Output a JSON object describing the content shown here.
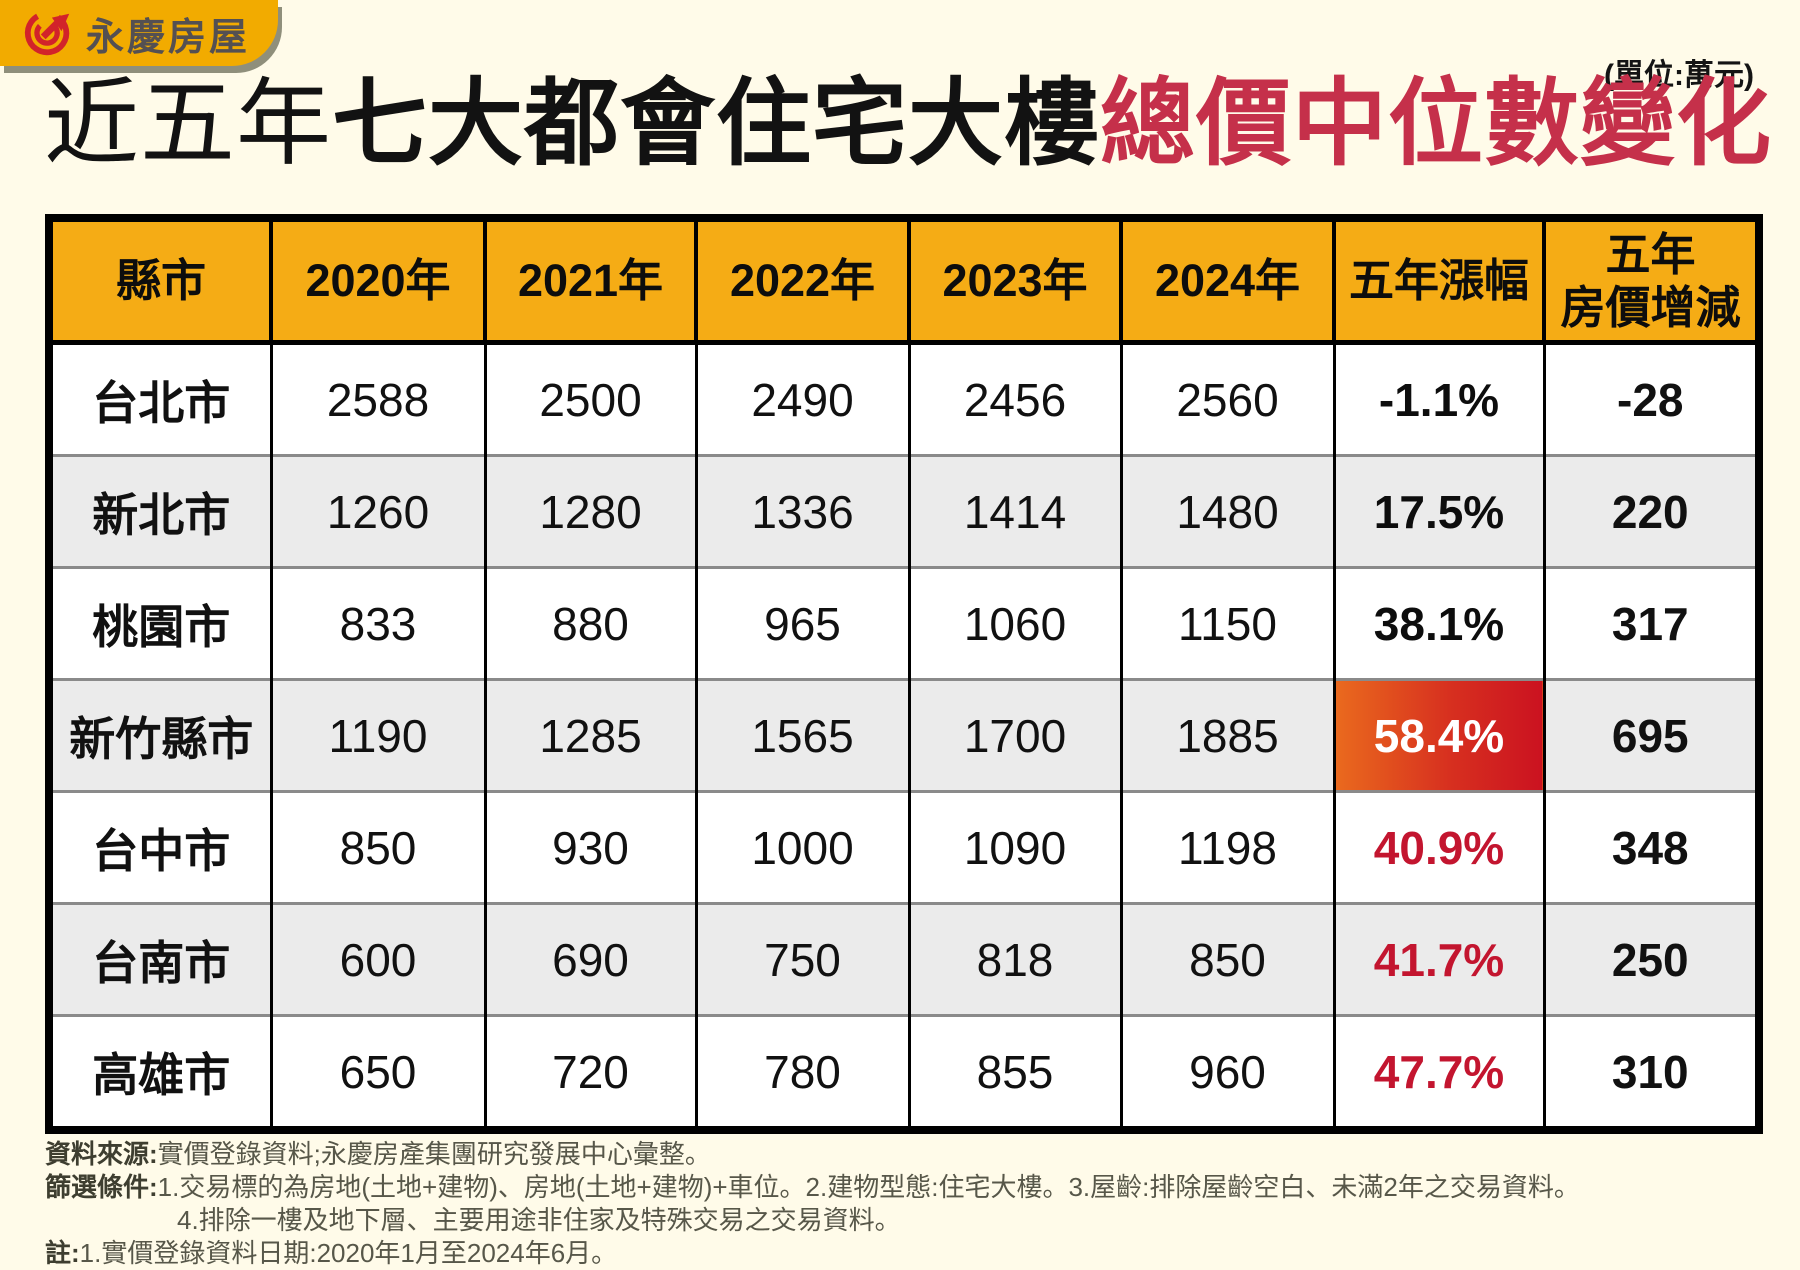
{
  "brand": {
    "name": "永慶房屋",
    "logo_icon": "yungching-swirl-arrow-icon",
    "badge_color": "#F2AB00",
    "logo_red": "#D2232A"
  },
  "unit_label": "(單位:萬元)",
  "title": {
    "prefix": "近五年",
    "middle": "七大都會住宅大樓",
    "highlight": "總價中位數變化",
    "highlight_color": "#C5304A"
  },
  "table": {
    "columns": [
      "縣市",
      "2020年",
      "2021年",
      "2022年",
      "2023年",
      "2024年",
      "五年漲幅",
      "五年\n房價增減"
    ],
    "rows": [
      {
        "city": "台北市",
        "values": [
          "2588",
          "2500",
          "2490",
          "2456",
          "2560"
        ],
        "change_pct": "-1.1%",
        "change_amt": "-28",
        "pct_style": "black",
        "zebra": "white"
      },
      {
        "city": "新北市",
        "values": [
          "1260",
          "1280",
          "1336",
          "1414",
          "1480"
        ],
        "change_pct": "17.5%",
        "change_amt": "220",
        "pct_style": "black",
        "zebra": "gray"
      },
      {
        "city": "桃園市",
        "values": [
          "833",
          "880",
          "965",
          "1060",
          "1150"
        ],
        "change_pct": "38.1%",
        "change_amt": "317",
        "pct_style": "black",
        "zebra": "white"
      },
      {
        "city": "新竹縣市",
        "values": [
          "1190",
          "1285",
          "1565",
          "1700",
          "1885"
        ],
        "change_pct": "58.4%",
        "change_amt": "695",
        "pct_style": "highlight",
        "zebra": "gray"
      },
      {
        "city": "台中市",
        "values": [
          "850",
          "930",
          "1000",
          "1090",
          "1198"
        ],
        "change_pct": "40.9%",
        "change_amt": "348",
        "pct_style": "red",
        "zebra": "white"
      },
      {
        "city": "台南市",
        "values": [
          "600",
          "690",
          "750",
          "818",
          "850"
        ],
        "change_pct": "41.7%",
        "change_amt": "250",
        "pct_style": "red",
        "zebra": "gray"
      },
      {
        "city": "高雄市",
        "values": [
          "650",
          "720",
          "780",
          "855",
          "960"
        ],
        "change_pct": "47.7%",
        "change_amt": "310",
        "pct_style": "red",
        "zebra": "white"
      }
    ]
  },
  "chart_data": {
    "type": "table",
    "title": "近五年七大都會住宅大樓總價中位數變化",
    "unit": "萬元",
    "columns": [
      "縣市",
      "2020年",
      "2021年",
      "2022年",
      "2023年",
      "2024年",
      "五年漲幅",
      "五年房價增減"
    ],
    "x": [
      "2020年",
      "2021年",
      "2022年",
      "2023年",
      "2024年"
    ],
    "series": [
      {
        "name": "台北市",
        "values": [
          2588,
          2500,
          2490,
          2456,
          2560
        ],
        "five_year_change_pct": -1.1,
        "five_year_change": -28
      },
      {
        "name": "新北市",
        "values": [
          1260,
          1280,
          1336,
          1414,
          1480
        ],
        "five_year_change_pct": 17.5,
        "five_year_change": 220
      },
      {
        "name": "桃園市",
        "values": [
          833,
          880,
          965,
          1060,
          1150
        ],
        "five_year_change_pct": 38.1,
        "five_year_change": 317
      },
      {
        "name": "新竹縣市",
        "values": [
          1190,
          1285,
          1565,
          1700,
          1885
        ],
        "five_year_change_pct": 58.4,
        "five_year_change": 695
      },
      {
        "name": "台中市",
        "values": [
          850,
          930,
          1000,
          1090,
          1198
        ],
        "five_year_change_pct": 40.9,
        "five_year_change": 348
      },
      {
        "name": "台南市",
        "values": [
          600,
          690,
          750,
          818,
          850
        ],
        "five_year_change_pct": 41.7,
        "five_year_change": 250
      },
      {
        "name": "高雄市",
        "values": [
          650,
          720,
          780,
          855,
          960
        ],
        "five_year_change_pct": 47.7,
        "five_year_change": 310
      }
    ],
    "highlight": {
      "row": "新竹縣市",
      "column": "五年漲幅",
      "value": "58.4%"
    }
  },
  "footnotes": {
    "source_label": "資料來源:",
    "source_text": "實價登錄資料;永慶房產集團研究發展中心彙整。",
    "filter_label": "篩選條件:",
    "filter_text": "1.交易標的為房地(土地+建物)、房地(土地+建物)+車位。2.建物型態:住宅大樓。3.屋齡:排除屋齡空白、未滿2年之交易資料。",
    "filter_text_continued": "4.排除一樓及地下層、主要用途非住家及特殊交易之交易資料。",
    "note_label": "註:",
    "note_text": "1.實價登錄資料日期:2020年1月至2024年6月。"
  },
  "colors": {
    "background": "#FFFBE9",
    "header_yellow": "#F5AC15",
    "badge_yellow": "#F2AB00",
    "zebra_gray": "#EBEBEB",
    "title_red": "#C5304A",
    "pct_red": "#C3152F",
    "highlight_gradient_start": "#EA6A1E",
    "highlight_gradient_end": "#CB1220",
    "logo_red": "#D2232A"
  }
}
